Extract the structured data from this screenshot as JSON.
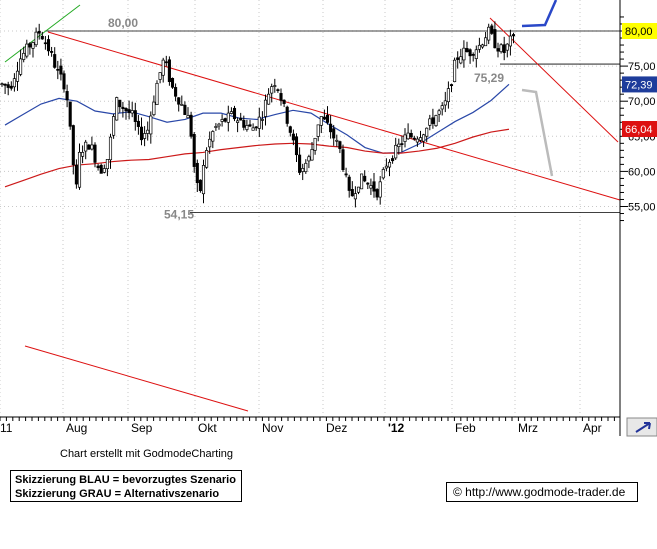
{
  "chart_data": {
    "type": "candlestick",
    "title": "",
    "xlabel": "",
    "ylabel": "",
    "ylim": [
      52.5,
      82.5
    ],
    "y_ticks": [
      55,
      60,
      65,
      70,
      75,
      80
    ],
    "y_tick_labels": [
      "55,00",
      "60,00",
      "65,00",
      "70,00",
      "75,00",
      "80,00"
    ],
    "x_tick_labels": [
      "11",
      "Aug",
      "Sep",
      "Okt",
      "Nov",
      "Dez",
      "'12",
      "Feb",
      "Mrz",
      "Apr"
    ],
    "price_tags": [
      {
        "label": "80,00",
        "value": 80.0,
        "color": "#ffff00",
        "text_color": "#000000"
      },
      {
        "label": "72,39",
        "value": 72.39,
        "color": "#1e3c9b",
        "text_color": "#ffffff"
      },
      {
        "label": "66,04",
        "value": 66.04,
        "color": "#dd1111",
        "text_color": "#ffffff"
      }
    ],
    "horizontal_levels": [
      80.0,
      75.29,
      54.15
    ],
    "annotations": [
      {
        "text": "80,00",
        "value": 80.0
      },
      {
        "text": "75,29",
        "value": 75.29
      },
      {
        "text": "54,15",
        "value": 54.15
      }
    ],
    "series": [
      {
        "kind": "moving_average",
        "color": "#2a48a8",
        "values": [
          66.6,
          68.1,
          69.6,
          70.4,
          70.0,
          68.6,
          68.2,
          68.5,
          67.8,
          67.0,
          67.4,
          68.3,
          68.3,
          67.6,
          67.4,
          68.1,
          68.7,
          68.3,
          66.7,
          65.2,
          63.4,
          62.6,
          62.7,
          63.9,
          65.5,
          67.1,
          68.4,
          70.1,
          72.4
        ]
      },
      {
        "kind": "moving_average",
        "color": "#cc1a1a",
        "values": [
          57.8,
          58.7,
          59.6,
          60.4,
          60.9,
          61.1,
          61.4,
          61.6,
          61.7,
          62.1,
          62.5,
          62.7,
          63.1,
          63.4,
          63.7,
          63.9,
          64.0,
          63.9,
          63.6,
          63.4,
          62.9,
          62.6,
          62.6,
          62.9,
          63.3,
          64.0,
          64.9,
          65.6,
          66.0
        ]
      }
    ]
  },
  "footer": {
    "credit": "Chart erstellt mit GodmodeCharting",
    "legend_blue": "Skizzierung BLAU = bevorzugtes Szenario",
    "legend_grey": "Skizzierung GRAU = Alternativszenario",
    "url": "© http://www.godmode-trader.de"
  },
  "colors": {
    "candle": "#000000",
    "trendline": "#dd1111",
    "uptrend": "#22aa22",
    "blue_scenario": "#2a48c8",
    "grey_scenario": "#bbbbbb",
    "level_line": "#000000",
    "grid": "#c8c8c8"
  }
}
